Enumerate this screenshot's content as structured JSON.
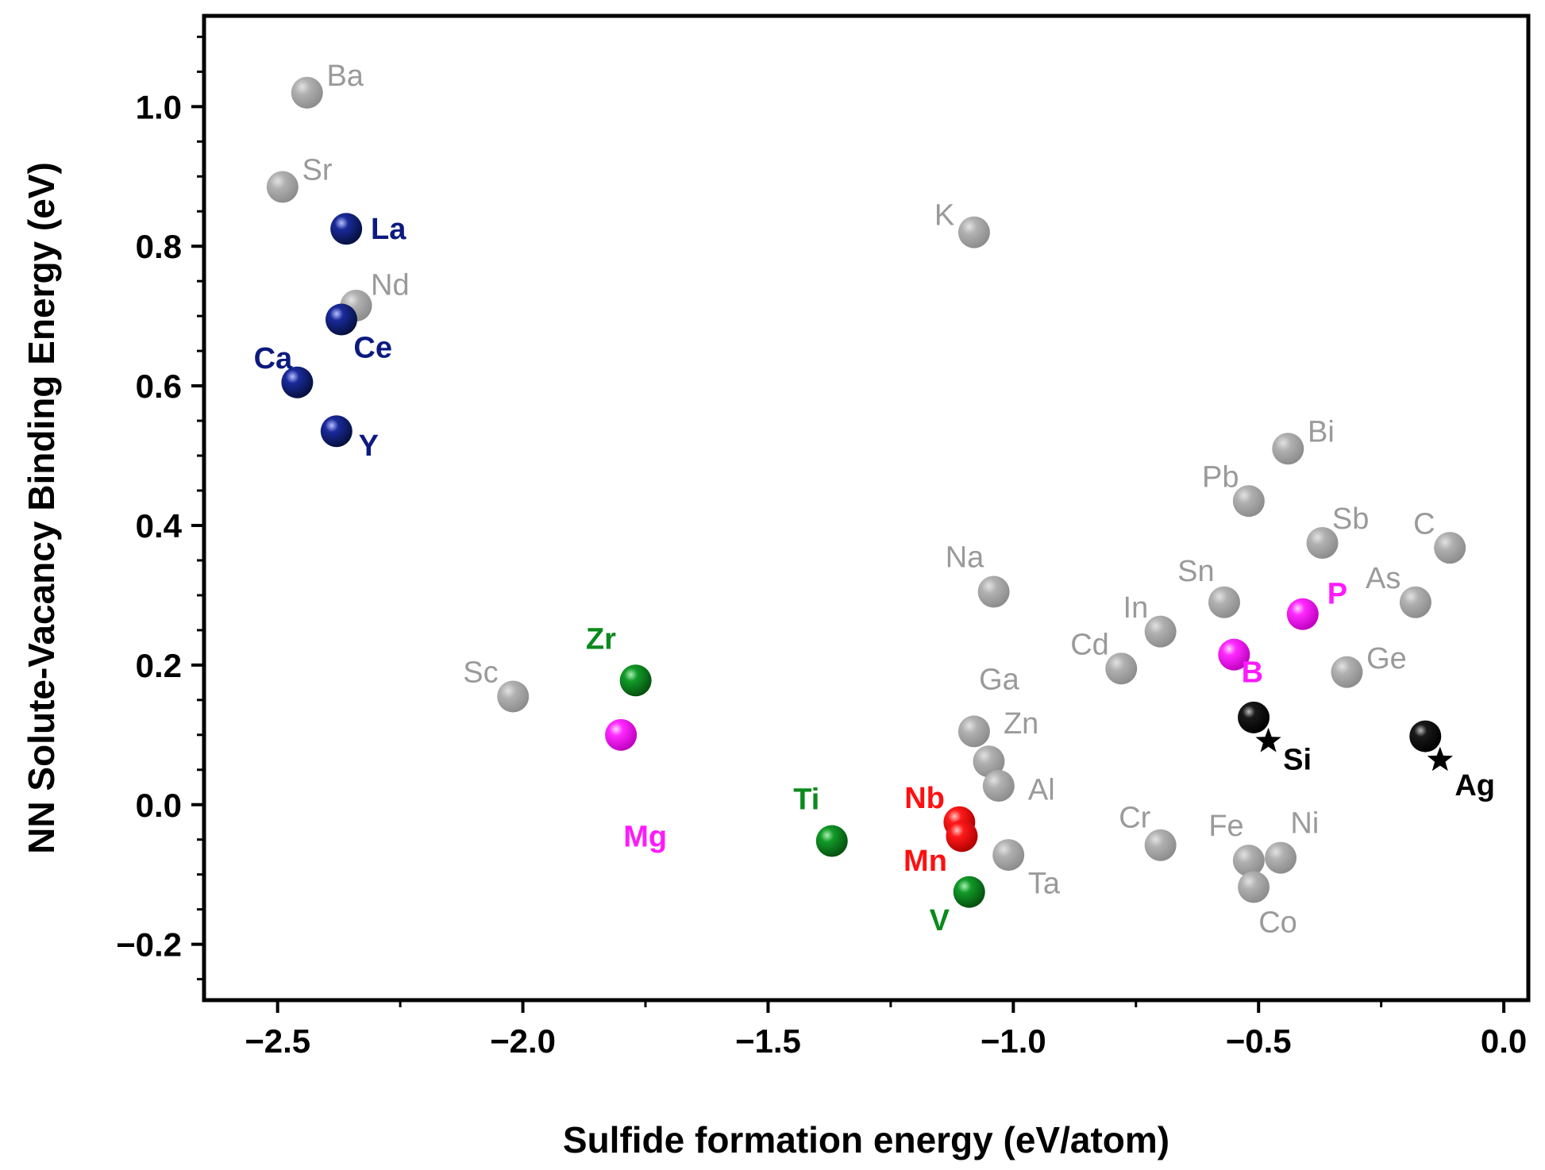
{
  "chart_data": {
    "type": "scatter",
    "xlabel": "Sulfide formation energy (eV/atom)",
    "ylabel": "NN Solute-Vacancy Binding Energy (eV)",
    "xlim": [
      -2.65,
      0.05
    ],
    "ylim": [
      -0.28,
      1.13
    ],
    "xticks": [
      -2.5,
      -2.0,
      -1.5,
      -1.0,
      -0.5,
      0.0
    ],
    "xtick_labels": [
      "−2.5",
      "−2.0",
      "−1.5",
      "−1.0",
      "−0.5",
      "0.0"
    ],
    "yticks": [
      -0.2,
      0.0,
      0.2,
      0.4,
      0.6,
      0.8,
      1.0
    ],
    "ytick_labels": [
      "−0.2",
      "0.0",
      "0.2",
      "0.4",
      "0.6",
      "0.8",
      "1.0"
    ],
    "grid": false,
    "legend": "none",
    "colors": {
      "gray": "#9a9a9a",
      "navy": "#0c1a80",
      "green": "#0b8a1c",
      "magenta": "#ff1aff",
      "red": "#ff1010",
      "black": "#000000"
    },
    "points": [
      {
        "label": "Ba",
        "x": -2.44,
        "y": 1.02,
        "group": "gray",
        "lx": 0.04,
        "ly": 0.025,
        "anchor": "start"
      },
      {
        "label": "Sr",
        "x": -2.49,
        "y": 0.885,
        "group": "gray",
        "lx": 0.04,
        "ly": 0.025,
        "anchor": "start"
      },
      {
        "label": "La",
        "x": -2.36,
        "y": 0.825,
        "group": "navy",
        "lx": 0.05,
        "ly": 0.0,
        "anchor": "start"
      },
      {
        "label": "Nd",
        "x": -2.34,
        "y": 0.715,
        "group": "gray",
        "lx": 0.03,
        "ly": 0.03,
        "anchor": "start"
      },
      {
        "label": "Ce",
        "x": -2.37,
        "y": 0.695,
        "group": "navy",
        "lx": 0.025,
        "ly": -0.04,
        "anchor": "start"
      },
      {
        "label": "Ca",
        "x": -2.46,
        "y": 0.605,
        "group": "navy",
        "lx": -0.01,
        "ly": 0.035,
        "anchor": "end"
      },
      {
        "label": "Y",
        "x": -2.38,
        "y": 0.535,
        "group": "navy",
        "lx": 0.045,
        "ly": -0.02,
        "anchor": "start"
      },
      {
        "label": "K",
        "x": -1.08,
        "y": 0.82,
        "group": "gray",
        "lx": -0.04,
        "ly": 0.025,
        "anchor": "end"
      },
      {
        "label": "Bi",
        "x": -0.44,
        "y": 0.51,
        "group": "gray",
        "lx": 0.04,
        "ly": 0.025,
        "anchor": "start"
      },
      {
        "label": "Pb",
        "x": -0.52,
        "y": 0.435,
        "group": "gray",
        "lx": -0.02,
        "ly": 0.035,
        "anchor": "end"
      },
      {
        "label": "Sb",
        "x": -0.37,
        "y": 0.375,
        "group": "gray",
        "lx": 0.02,
        "ly": 0.035,
        "anchor": "start"
      },
      {
        "label": "C",
        "x": -0.11,
        "y": 0.368,
        "group": "gray",
        "lx": -0.03,
        "ly": 0.035,
        "anchor": "end"
      },
      {
        "label": "Na",
        "x": -1.04,
        "y": 0.305,
        "group": "gray",
        "lx": -0.02,
        "ly": 0.05,
        "anchor": "end"
      },
      {
        "label": "Sn",
        "x": -0.57,
        "y": 0.29,
        "group": "gray",
        "lx": -0.02,
        "ly": 0.045,
        "anchor": "end"
      },
      {
        "label": "As",
        "x": -0.18,
        "y": 0.29,
        "group": "gray",
        "lx": -0.03,
        "ly": 0.035,
        "anchor": "end"
      },
      {
        "label": "P",
        "x": -0.41,
        "y": 0.273,
        "group": "magenta",
        "lx": 0.05,
        "ly": 0.03,
        "anchor": "start"
      },
      {
        "label": "In",
        "x": -0.7,
        "y": 0.248,
        "group": "gray",
        "lx": -0.025,
        "ly": 0.035,
        "anchor": "end"
      },
      {
        "label": "B",
        "x": -0.55,
        "y": 0.215,
        "group": "magenta",
        "lx": 0.015,
        "ly": -0.025,
        "anchor": "start"
      },
      {
        "label": "Cd",
        "x": -0.78,
        "y": 0.195,
        "group": "gray",
        "lx": -0.025,
        "ly": 0.035,
        "anchor": "end"
      },
      {
        "label": "Ge",
        "x": -0.32,
        "y": 0.19,
        "group": "gray",
        "lx": 0.04,
        "ly": 0.02,
        "anchor": "start"
      },
      {
        "label": "Sc",
        "x": -2.02,
        "y": 0.155,
        "group": "gray",
        "lx": -0.03,
        "ly": 0.035,
        "anchor": "end"
      },
      {
        "label": "Zr",
        "x": -1.77,
        "y": 0.178,
        "group": "green",
        "lx": -0.04,
        "ly": 0.06,
        "anchor": "end"
      },
      {
        "label": "Mg",
        "x": -1.8,
        "y": 0.1,
        "group": "magenta",
        "lx": 0.005,
        "ly": -0.145,
        "anchor": "start"
      },
      {
        "label": "Ga",
        "x": -1.08,
        "y": 0.105,
        "group": "gray",
        "lx": 0.01,
        "ly": 0.075,
        "anchor": "start"
      },
      {
        "label": "Zn",
        "x": -1.05,
        "y": 0.062,
        "group": "gray",
        "lx": 0.03,
        "ly": 0.055,
        "anchor": "start"
      },
      {
        "label": "Al",
        "x": -1.03,
        "y": 0.027,
        "group": "gray",
        "lx": 0.06,
        "ly": -0.005,
        "anchor": "start"
      },
      {
        "label": "Si",
        "x": -0.51,
        "y": 0.125,
        "group": "black",
        "lx": 0.06,
        "ly": -0.06,
        "anchor": "start",
        "star": true
      },
      {
        "label": "Ag",
        "x": -0.16,
        "y": 0.098,
        "group": "black",
        "lx": 0.06,
        "ly": -0.07,
        "anchor": "start",
        "star": true
      },
      {
        "label": "Nb",
        "x": -1.11,
        "y": -0.025,
        "group": "red",
        "lx": -0.03,
        "ly": 0.035,
        "anchor": "end"
      },
      {
        "label": "Mn",
        "x": -1.105,
        "y": -0.045,
        "group": "red",
        "lx": -0.03,
        "ly": -0.035,
        "anchor": "end"
      },
      {
        "label": "Ti",
        "x": -1.37,
        "y": -0.052,
        "group": "green",
        "lx": -0.025,
        "ly": 0.06,
        "anchor": "end"
      },
      {
        "label": "Ta",
        "x": -1.01,
        "y": -0.072,
        "group": "gray",
        "lx": 0.04,
        "ly": -0.04,
        "anchor": "start"
      },
      {
        "label": "V",
        "x": -1.09,
        "y": -0.125,
        "group": "green",
        "lx": -0.04,
        "ly": -0.04,
        "anchor": "end"
      },
      {
        "label": "Cr",
        "x": -0.7,
        "y": -0.058,
        "group": "gray",
        "lx": -0.02,
        "ly": 0.04,
        "anchor": "end"
      },
      {
        "label": "Fe",
        "x": -0.52,
        "y": -0.08,
        "group": "gray",
        "lx": -0.01,
        "ly": 0.05,
        "anchor": "end"
      },
      {
        "label": "Ni",
        "x": -0.455,
        "y": -0.076,
        "group": "gray",
        "lx": 0.02,
        "ly": 0.05,
        "anchor": "start"
      },
      {
        "label": "Co",
        "x": -0.51,
        "y": -0.118,
        "group": "gray",
        "lx": 0.01,
        "ly": -0.05,
        "anchor": "start"
      }
    ]
  }
}
